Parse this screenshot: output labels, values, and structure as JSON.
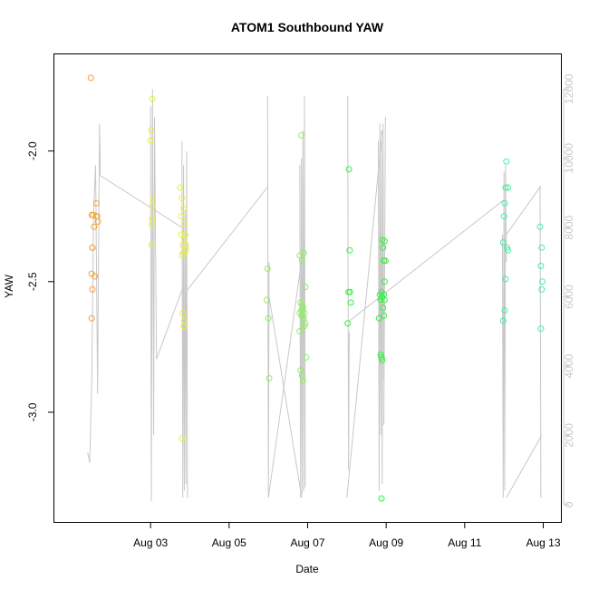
{
  "chart_data": {
    "type": "scatter",
    "title": "ATOM1 Southbound YAW",
    "xlabel": "Date",
    "ylabel": "YAW",
    "x_ticks": [
      "Aug 03",
      "Aug 05",
      "Aug 07",
      "Aug 09",
      "Aug 11",
      "Aug 13"
    ],
    "y_ticks": [
      "-2.0",
      "-2.5",
      "-3.0"
    ],
    "y2_ticks": [
      "0",
      "2000",
      "4000",
      "6000",
      "8000",
      "10000",
      "12000"
    ],
    "colors": {
      "orange": "#f5a030",
      "yellow": "#e6f040",
      "lightgreen": "#8cf060",
      "green": "#30f040",
      "cyan": "#40f0a0",
      "line": "#c8c8c8"
    },
    "series": [
      {
        "color": "orange",
        "points": [
          [
            1.48,
            -1.72
          ],
          [
            1.5,
            -2.245
          ],
          [
            1.52,
            -2.37
          ],
          [
            1.52,
            -2.37
          ],
          [
            1.5,
            -2.47
          ],
          [
            1.52,
            -2.53
          ],
          [
            1.5,
            -2.64
          ],
          [
            1.54,
            -2.245
          ],
          [
            1.56,
            -2.29
          ],
          [
            1.58,
            -2.48
          ],
          [
            1.62,
            -2.25
          ],
          [
            1.62,
            -2.2
          ],
          [
            1.64,
            -2.25
          ],
          [
            1.66,
            -2.27
          ]
        ]
      },
      {
        "color": "yellow",
        "points": [
          [
            3.0,
            -1.96
          ],
          [
            3.02,
            -1.92
          ],
          [
            3.04,
            -1.8
          ],
          [
            3.06,
            -2.18
          ],
          [
            3.05,
            -2.21
          ],
          [
            3.04,
            -2.26
          ],
          [
            3.03,
            -2.28
          ],
          [
            3.02,
            -2.36
          ],
          [
            3.75,
            -2.14
          ],
          [
            3.78,
            -2.25
          ],
          [
            3.8,
            -2.18
          ],
          [
            3.84,
            -2.22
          ],
          [
            3.86,
            -2.28
          ],
          [
            3.88,
            -2.32
          ],
          [
            3.9,
            -2.36
          ],
          [
            3.82,
            -2.36
          ],
          [
            3.8,
            -2.4
          ],
          [
            3.86,
            -2.34
          ],
          [
            3.84,
            -2.39
          ],
          [
            3.9,
            -2.38
          ],
          [
            3.82,
            -2.62
          ],
          [
            3.86,
            -2.65
          ],
          [
            3.84,
            -2.67
          ],
          [
            3.8,
            -3.1
          ],
          [
            3.78,
            -2.32
          ]
        ]
      },
      {
        "color": "lightgreen",
        "points": [
          [
            5.98,
            -2.45
          ],
          [
            5.96,
            -2.57
          ],
          [
            6.0,
            -2.64
          ],
          [
            6.02,
            -2.87
          ],
          [
            6.8,
            -2.4
          ],
          [
            6.86,
            -2.42
          ],
          [
            6.9,
            -2.39
          ],
          [
            6.82,
            -2.58
          ],
          [
            6.86,
            -2.59
          ],
          [
            6.84,
            -2.61
          ],
          [
            6.88,
            -2.6
          ],
          [
            6.8,
            -2.62
          ],
          [
            6.84,
            -2.63
          ],
          [
            6.9,
            -2.64
          ],
          [
            6.92,
            -2.67
          ],
          [
            6.94,
            -2.66
          ],
          [
            6.84,
            -1.94
          ],
          [
            6.82,
            -2.84
          ],
          [
            6.86,
            -2.86
          ],
          [
            6.88,
            -2.88
          ],
          [
            6.94,
            -2.52
          ],
          [
            6.96,
            -2.79
          ],
          [
            6.8,
            -2.69
          ],
          [
            6.92,
            -2.62
          ]
        ]
      },
      {
        "color": "green",
        "points": [
          [
            8.05,
            -2.07
          ],
          [
            8.07,
            -2.38
          ],
          [
            8.04,
            -2.54
          ],
          [
            8.08,
            -2.54
          ],
          [
            8.1,
            -2.58
          ],
          [
            8.02,
            -2.66
          ],
          [
            8.82,
            -2.64
          ],
          [
            8.84,
            -2.55
          ],
          [
            8.88,
            -2.54
          ],
          [
            8.86,
            -2.57
          ],
          [
            8.9,
            -2.56
          ],
          [
            8.94,
            -2.55
          ],
          [
            8.96,
            -2.57
          ],
          [
            8.92,
            -2.6
          ],
          [
            8.94,
            -2.63
          ],
          [
            8.9,
            -2.34
          ],
          [
            8.96,
            -2.345
          ],
          [
            8.92,
            -2.37
          ],
          [
            8.94,
            -2.42
          ],
          [
            8.98,
            -2.42
          ],
          [
            8.96,
            -2.5
          ],
          [
            8.86,
            -2.78
          ],
          [
            8.88,
            -2.79
          ],
          [
            8.9,
            -2.8
          ],
          [
            8.88,
            -3.33
          ]
        ]
      },
      {
        "color": "cyan",
        "points": [
          [
            11.98,
            -2.35
          ],
          [
            12.0,
            -2.25
          ],
          [
            12.02,
            -2.2
          ],
          [
            12.04,
            -2.14
          ],
          [
            12.06,
            -2.04
          ],
          [
            12.1,
            -2.14
          ],
          [
            12.1,
            -2.38
          ],
          [
            12.08,
            -2.37
          ],
          [
            12.04,
            -2.49
          ],
          [
            12.02,
            -2.61
          ],
          [
            11.98,
            -2.65
          ],
          [
            12.92,
            -2.29
          ],
          [
            12.96,
            -2.37
          ],
          [
            12.94,
            -2.44
          ],
          [
            12.98,
            -2.5
          ],
          [
            12.96,
            -2.53
          ],
          [
            12.94,
            -2.68
          ]
        ]
      }
    ],
    "secondary_series": {
      "color": "line",
      "segments": [
        [
          [
            1.4,
            1500
          ],
          [
            1.45,
            1200
          ],
          [
            1.5,
            3500
          ],
          [
            1.55,
            8500
          ],
          [
            1.6,
            9800
          ],
          [
            1.65,
            3200
          ],
          [
            1.7,
            11000
          ],
          [
            1.72,
            9500
          ]
        ],
        [
          [
            1.72,
            9500
          ],
          [
            3.8,
            8000
          ]
        ],
        [
          [
            3.0,
            11500
          ],
          [
            3.02,
            100
          ],
          [
            3.05,
            12000
          ],
          [
            3.08,
            2000
          ],
          [
            3.1,
            11200
          ],
          [
            3.15,
            4200
          ]
        ],
        [
          [
            3.15,
            4200
          ],
          [
            3.8,
            6200
          ]
        ],
        [
          [
            3.8,
            10500
          ],
          [
            3.82,
            200
          ],
          [
            3.84,
            9800
          ],
          [
            3.86,
            400
          ],
          [
            3.88,
            8500
          ],
          [
            3.9,
            600
          ],
          [
            3.92,
            10200
          ],
          [
            3.94,
            200
          ]
        ],
        [
          [
            3.94,
            6200
          ],
          [
            6.0,
            9200
          ]
        ],
        [
          [
            5.98,
            11800
          ],
          [
            6.0,
            200
          ],
          [
            6.02,
            7000
          ]
        ],
        [
          [
            6.02,
            6000
          ],
          [
            6.85,
            200
          ]
        ],
        [
          [
            6.8,
            9800
          ],
          [
            6.82,
            200
          ],
          [
            6.84,
            10000
          ],
          [
            6.86,
            300
          ],
          [
            6.88,
            10800
          ],
          [
            6.9,
            400
          ],
          [
            6.92,
            11800
          ],
          [
            6.94,
            500
          ]
        ],
        [
          [
            6.0,
            200
          ],
          [
            6.9,
            7500
          ]
        ],
        [
          [
            8.0,
            200
          ],
          [
            8.9,
            10800
          ]
        ],
        [
          [
            8.02,
            11800
          ],
          [
            8.04,
            1000
          ],
          [
            8.06,
            5000
          ]
        ],
        [
          [
            8.06,
            5300
          ],
          [
            12.0,
            8800
          ]
        ],
        [
          [
            8.8,
            10500
          ],
          [
            8.82,
            400
          ],
          [
            8.84,
            11000
          ],
          [
            8.86,
            2000
          ],
          [
            8.88,
            10800
          ],
          [
            8.9,
            600
          ],
          [
            8.92,
            11000
          ],
          [
            8.94,
            3600
          ]
        ],
        [
          [
            8.94,
            2300
          ],
          [
            8.98,
            11200
          ]
        ],
        [
          [
            11.96,
            7800
          ],
          [
            11.98,
            200
          ],
          [
            12.0,
            9600
          ],
          [
            12.02,
            400
          ],
          [
            12.04,
            9800
          ],
          [
            12.06,
            7000
          ]
        ],
        [
          [
            12.06,
            200
          ],
          [
            12.96,
            2000
          ]
        ],
        [
          [
            12.06,
            7800
          ],
          [
            12.94,
            9200
          ]
        ],
        [
          [
            12.92,
            9200
          ],
          [
            12.94,
            200
          ]
        ]
      ]
    },
    "x_range": [
      0.55,
      13.45
    ],
    "y_range": [
      -3.42,
      -1.63
    ],
    "y2_range": [
      -500,
      13000
    ]
  }
}
